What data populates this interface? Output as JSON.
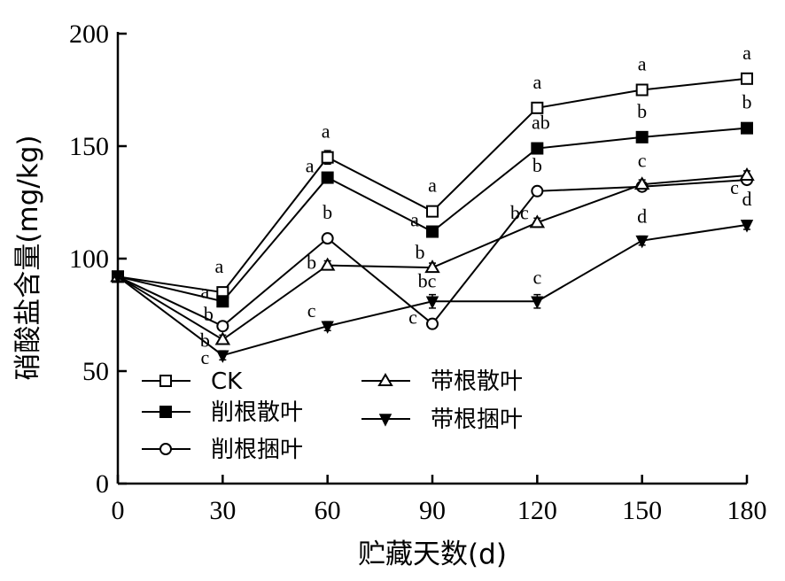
{
  "chart_data": {
    "type": "line",
    "xlabel": "贮藏天数(d)",
    "ylabel": "硝酸盐含量(mg/kg)",
    "x": [
      0,
      30,
      60,
      90,
      120,
      150,
      180
    ],
    "xlim": [
      0,
      180
    ],
    "ylim": [
      0,
      200
    ],
    "xticks": [
      "0",
      "30",
      "60",
      "90",
      "120",
      "150",
      "180"
    ],
    "yticks": [
      "0",
      "50",
      "100",
      "150",
      "200"
    ],
    "grid": false,
    "legend_position": "lower-left",
    "series": [
      {
        "name": "CK",
        "marker": "square-open",
        "values": [
          92,
          85,
          145,
          121,
          167,
          175,
          180
        ],
        "errors": [
          2,
          2,
          3,
          2,
          2,
          2,
          2
        ],
        "labels": [
          "",
          "a",
          "a",
          "a",
          "a",
          "a",
          "a"
        ]
      },
      {
        "name": "削根散叶",
        "marker": "square-filled",
        "values": [
          92,
          81,
          136,
          112,
          149,
          154,
          158
        ],
        "errors": [
          2,
          2,
          2,
          2,
          2,
          2,
          2
        ],
        "labels": [
          "",
          "a",
          "a",
          "a",
          "ab",
          "b",
          "b"
        ]
      },
      {
        "name": "削根捆叶",
        "marker": "circle-open",
        "values": [
          92,
          70,
          109,
          71,
          130,
          132,
          135
        ],
        "errors": [
          2,
          2,
          2,
          2,
          2,
          2,
          2
        ],
        "labels": [
          "",
          "b",
          "b",
          "c",
          "b",
          "c",
          "c"
        ]
      },
      {
        "name": "带根散叶",
        "marker": "triangle-up-open",
        "values": [
          92,
          64,
          97,
          96,
          116,
          133,
          137
        ],
        "errors": [
          2,
          2,
          2,
          2,
          2,
          2,
          2
        ],
        "labels": [
          "",
          "b",
          "b",
          "b",
          "bc",
          "",
          ""
        ]
      },
      {
        "name": "带根捆叶",
        "marker": "triangle-down-filled",
        "values": [
          92,
          57,
          70,
          81,
          81,
          108,
          115
        ],
        "errors": [
          2,
          2,
          2,
          3,
          3,
          2,
          2
        ],
        "labels": [
          "",
          "c",
          "c",
          "bc",
          "c",
          "d",
          "d"
        ]
      }
    ]
  }
}
